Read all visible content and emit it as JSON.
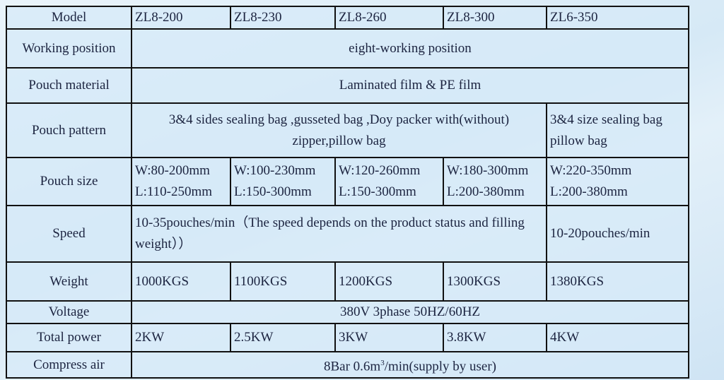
{
  "table": {
    "model": {
      "label": "Model",
      "values": [
        "ZL8-200",
        "ZL8-230",
        "ZL8-260",
        "ZL8-300",
        "ZL6-350"
      ]
    },
    "working_position": {
      "label": "Working position",
      "value": "eight-working position"
    },
    "pouch_material": {
      "label": "Pouch material",
      "value": "Laminated film & PE film"
    },
    "pouch_pattern": {
      "label": "Pouch pattern",
      "value_1": "3&4 sides sealing bag ,gusseted bag ,Doy packer with(without) zipper,pillow bag",
      "value_2_line1": "3&4 size sealing bag",
      "value_2_line2": "pillow bag"
    },
    "pouch_size": {
      "label": "Pouch size",
      "values": [
        {
          "w": "W:80-200mm",
          "l": "L:110-250mm"
        },
        {
          "w": "W:100-230mm",
          "l": "L:150-300mm"
        },
        {
          "w": "W:120-260mm",
          "l": "L:150-300mm"
        },
        {
          "w": "W:180-300mm",
          "l": "L:200-380mm"
        },
        {
          "w": "W:220-350mm",
          "l": "L:200-380mm"
        }
      ]
    },
    "speed": {
      "label": "Speed",
      "value_1": "10-35pouches/min（The speed depends on the product status and filling weight））",
      "value_2": "10-20pouches/min"
    },
    "weight": {
      "label": "Weight",
      "values": [
        "1000KGS",
        "1100KGS",
        "1200KGS",
        "1300KGS",
        "1380KGS"
      ]
    },
    "voltage": {
      "label": "Voltage",
      "value": "380V 3phase  50HZ/60HZ"
    },
    "total_power": {
      "label": "Total power",
      "values": [
        "2KW",
        "2.5KW",
        "3KW",
        "3.8KW",
        "4KW"
      ]
    },
    "compress_air": {
      "label": "Compress air",
      "value_pre": "8Bar 0.6m",
      "value_sup": "3",
      "value_post": "/min(supply by user)"
    }
  }
}
